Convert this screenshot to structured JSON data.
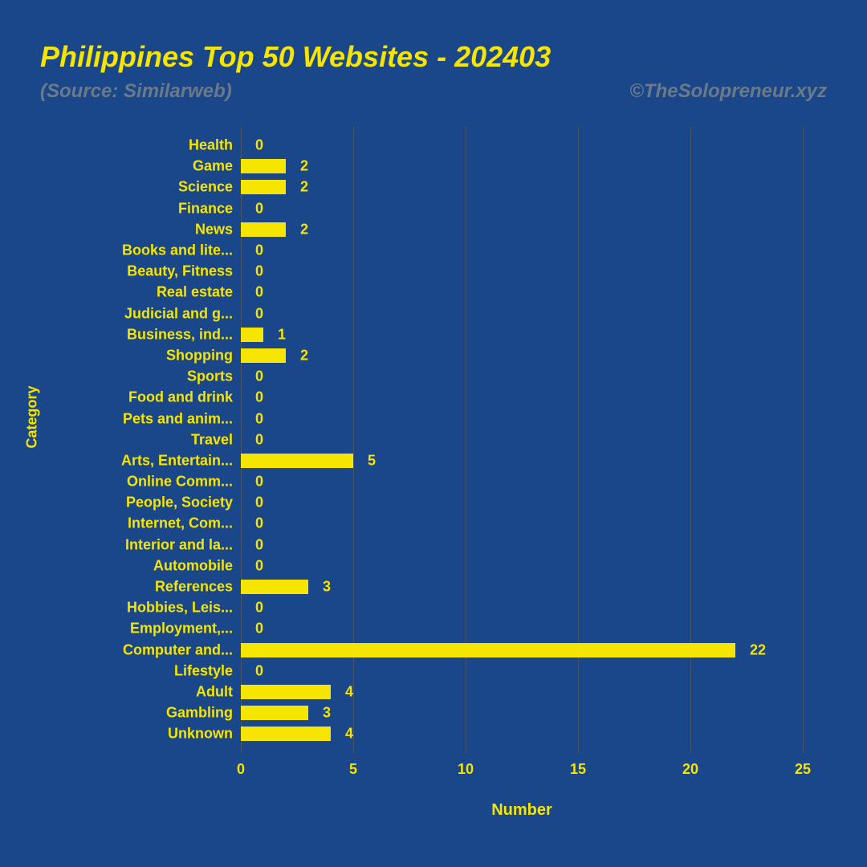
{
  "title": "Philippines Top 50 Websites - 202403",
  "source": "(Source: Similarweb)",
  "attribution": "©TheSolopreneur.xyz",
  "chart": {
    "type": "bar-horizontal",
    "x_axis_label": "Number",
    "y_axis_label": "Category",
    "xlim": [
      0,
      25
    ],
    "xtick_step": 5,
    "xticks": [
      0,
      5,
      10,
      15,
      20,
      25
    ],
    "bar_color": "#f5e500",
    "text_color": "#f5e500",
    "background_color": "#1a4789",
    "grid_color": "#4a5568",
    "subhead_color": "#6a7a8a",
    "title_fontsize": 36,
    "label_fontsize": 18,
    "categories": [
      {
        "label": "Health",
        "value": 0
      },
      {
        "label": "Game",
        "value": 2
      },
      {
        "label": "Science",
        "value": 2
      },
      {
        "label": "Finance",
        "value": 0
      },
      {
        "label": "News",
        "value": 2
      },
      {
        "label": "Books and lite...",
        "value": 0
      },
      {
        "label": "Beauty, Fitness",
        "value": 0
      },
      {
        "label": "Real estate",
        "value": 0
      },
      {
        "label": "Judicial and g...",
        "value": 0
      },
      {
        "label": "Business, ind...",
        "value": 1
      },
      {
        "label": "Shopping",
        "value": 2
      },
      {
        "label": "Sports",
        "value": 0
      },
      {
        "label": "Food and drink",
        "value": 0
      },
      {
        "label": "Pets and anim...",
        "value": 0
      },
      {
        "label": "Travel",
        "value": 0
      },
      {
        "label": "Arts, Entertain...",
        "value": 5
      },
      {
        "label": "Online Comm...",
        "value": 0
      },
      {
        "label": "People, Society",
        "value": 0
      },
      {
        "label": "Internet, Com...",
        "value": 0
      },
      {
        "label": "Interior and la...",
        "value": 0
      },
      {
        "label": "Automobile",
        "value": 0
      },
      {
        "label": "References",
        "value": 3
      },
      {
        "label": "Hobbies, Leis...",
        "value": 0
      },
      {
        "label": "Employment,...",
        "value": 0
      },
      {
        "label": "Computer and...",
        "value": 22
      },
      {
        "label": "Lifestyle",
        "value": 0
      },
      {
        "label": "Adult",
        "value": 4
      },
      {
        "label": "Gambling",
        "value": 3
      },
      {
        "label": "Unknown",
        "value": 4
      }
    ]
  }
}
